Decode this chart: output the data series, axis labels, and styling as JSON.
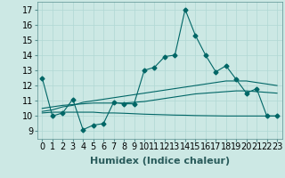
{
  "xlabel": "Humidex (Indice chaleur)",
  "background_color": "#cce8e4",
  "line_color": "#006666",
  "grid_color": "#b0d8d4",
  "xlim": [
    -0.5,
    23.5
  ],
  "ylim": [
    8.5,
    17.5
  ],
  "yticks": [
    9,
    10,
    11,
    12,
    13,
    14,
    15,
    16,
    17
  ],
  "xticks": [
    0,
    1,
    2,
    3,
    4,
    5,
    6,
    7,
    8,
    9,
    10,
    11,
    12,
    13,
    14,
    15,
    16,
    17,
    18,
    19,
    20,
    21,
    22,
    23
  ],
  "main_series": [
    12.5,
    10.0,
    10.2,
    11.1,
    9.1,
    9.4,
    9.5,
    10.9,
    10.8,
    10.8,
    13.0,
    13.2,
    13.9,
    14.0,
    17.0,
    15.3,
    14.0,
    12.9,
    13.3,
    12.4,
    11.5,
    11.8,
    10.0,
    10.0
  ],
  "smooth1": [
    10.3,
    10.4,
    10.6,
    10.7,
    10.9,
    11.0,
    11.1,
    11.2,
    11.3,
    11.4,
    11.5,
    11.6,
    11.7,
    11.8,
    11.9,
    12.0,
    12.1,
    12.2,
    12.3,
    12.3,
    12.3,
    12.2,
    12.1,
    12.0
  ],
  "smooth2": [
    10.5,
    10.6,
    10.7,
    10.75,
    10.8,
    10.85,
    10.85,
    10.85,
    10.85,
    10.9,
    10.95,
    11.05,
    11.15,
    11.25,
    11.35,
    11.45,
    11.5,
    11.55,
    11.6,
    11.65,
    11.65,
    11.6,
    11.55,
    11.5
  ],
  "smooth3": [
    10.2,
    10.25,
    10.25,
    10.25,
    10.25,
    10.25,
    10.2,
    10.2,
    10.18,
    10.15,
    10.12,
    10.1,
    10.08,
    10.06,
    10.05,
    10.03,
    10.02,
    10.01,
    10.0,
    10.0,
    10.0,
    10.0,
    10.0,
    10.0
  ],
  "font_size_xlabel": 8,
  "font_size_ticks": 7
}
